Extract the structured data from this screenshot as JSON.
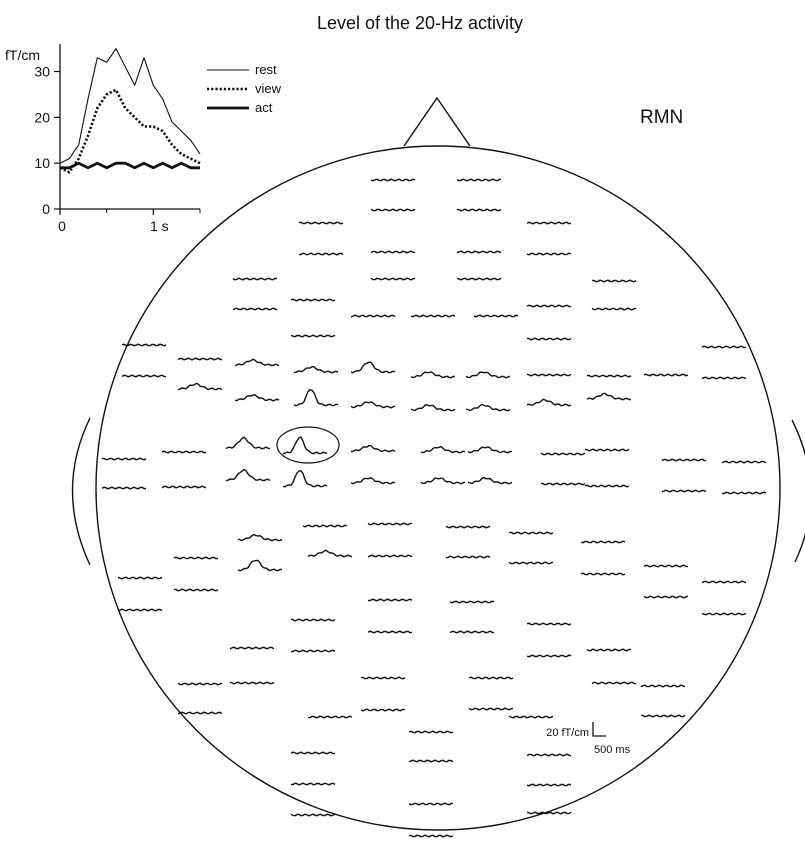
{
  "figure": {
    "title": "Level of the 20-Hz activity",
    "subject_label": "RMN",
    "scale_bar": {
      "amplitude": "20 fT/cm",
      "time": "500 ms"
    }
  },
  "chart_data": {
    "type": "line",
    "title": "",
    "xlabel": "",
    "ylabel": "fT/cm",
    "x_unit": "s",
    "y_ticks": [
      0,
      10,
      20,
      30
    ],
    "x_ticks": [
      {
        "value": 0,
        "label": "0"
      },
      {
        "value": 1,
        "label": "1 s"
      }
    ],
    "xlim": [
      0,
      1.5
    ],
    "ylim": [
      0,
      36
    ],
    "legend_position": "top-right",
    "x": [
      0,
      0.1,
      0.2,
      0.3,
      0.4,
      0.5,
      0.6,
      0.7,
      0.8,
      0.9,
      1.0,
      1.1,
      1.2,
      1.3,
      1.4,
      1.5
    ],
    "series": [
      {
        "name": "rest",
        "style": "thin",
        "values": [
          10,
          11,
          14,
          24,
          33,
          32,
          35,
          31,
          27,
          33,
          27,
          24,
          19,
          17,
          15,
          12
        ]
      },
      {
        "name": "view",
        "style": "dotted",
        "values": [
          9,
          8,
          11,
          16,
          22,
          25,
          26,
          22,
          20,
          18,
          18,
          17,
          14,
          12,
          11,
          10
        ]
      },
      {
        "name": "act",
        "style": "thick",
        "values": [
          9,
          9,
          10,
          9,
          10,
          9,
          10,
          10,
          9,
          10,
          9,
          10,
          9,
          10,
          9,
          9
        ]
      }
    ]
  }
}
